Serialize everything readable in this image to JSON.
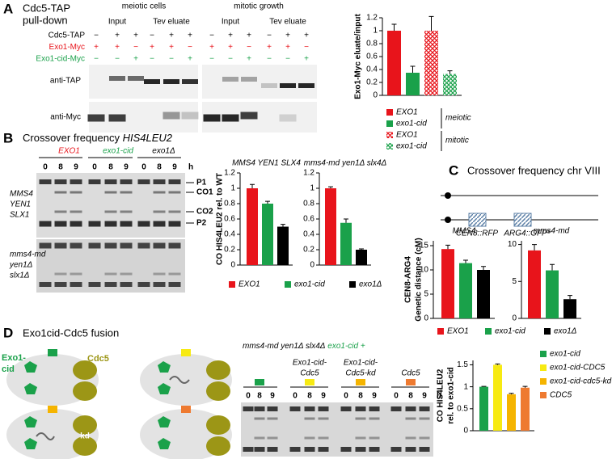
{
  "A": {
    "letter": "A",
    "title": [
      "Cdc5-TAP",
      "pull-down"
    ],
    "conditions": [
      "meiotic cells",
      "mitotic growth"
    ],
    "fractions": [
      "Input",
      "Tev eluate",
      "Input",
      "Tev eluate"
    ],
    "rows": [
      {
        "label": "Cdc5-TAP",
        "color": "#000000",
        "signs": [
          "−",
          "+",
          "+",
          "−",
          "+",
          "+",
          "−",
          "+",
          "+",
          "−",
          "+",
          "+"
        ]
      },
      {
        "label": "Exo1-Myc",
        "color": "#e8141b",
        "signs": [
          "+",
          "+",
          "−",
          "+",
          "+",
          "−",
          "+",
          "+",
          "−",
          "+",
          "+",
          "−"
        ]
      },
      {
        "label": "Exo1-cid-Myc",
        "color": "#1aa14a",
        "signs": [
          "−",
          "−",
          "+",
          "−",
          "−",
          "+",
          "−",
          "−",
          "+",
          "−",
          "−",
          "+"
        ]
      }
    ],
    "blots": [
      "anti-TAP",
      "anti-Myc"
    ],
    "legend_groups": [
      "meiotic",
      "mitotic"
    ]
  },
  "B": {
    "letter": "B",
    "title": "Crossover frequency",
    "title_locus": "HIS4LEU2",
    "genotypes": [
      {
        "name": "EXO1",
        "color": "#e8141b"
      },
      {
        "name": "exo1-cid",
        "color": "#1aa14a"
      },
      {
        "name": "exo1Δ",
        "color": "#000000"
      }
    ],
    "lanes": [
      "0",
      "8",
      "9",
      "0",
      "8",
      "9",
      "0",
      "8",
      "9"
    ],
    "lane_unit": "h",
    "bands": [
      "P1",
      "CO1",
      "CO2",
      "P2"
    ],
    "strains": [
      [
        "MMS4",
        "YEN1",
        "SLX1"
      ],
      [
        "mms4-md",
        "yen1Δ",
        "slx1Δ"
      ]
    ],
    "legend": [
      {
        "name": "EXO1",
        "color": "#e8141b"
      },
      {
        "name": "exo1-cid",
        "color": "#1aa14a"
      },
      {
        "name": "exo1Δ",
        "color": "#000000"
      }
    ]
  },
  "C": {
    "letter": "C",
    "title": "Crossover frequency chr VIII",
    "markers": [
      "CEN8::RFP",
      "ARG4::GFP*"
    ],
    "legend": [
      {
        "name": "EXO1",
        "color": "#e8141b"
      },
      {
        "name": "exo1-cid",
        "color": "#1aa14a"
      },
      {
        "name": "exo1Δ",
        "color": "#000000"
      }
    ]
  },
  "D": {
    "letter": "D",
    "title": "Exo1cid-Cdc5 fusion",
    "cell_labels": [
      "Exo1-",
      "cid",
      "Cdc5",
      "kd"
    ],
    "gel_title": "mms4-md yen1Δ slx4Δ",
    "gel_title_suffix": "exo1-cid +",
    "constructs": [
      {
        "label": [],
        "color": "#1aa14a"
      },
      {
        "label": [
          "Exo1-cid-",
          "Cdc5"
        ],
        "color": "#f7ea12"
      },
      {
        "label": [
          "Exo1-cid-",
          "Cdc5-kd"
        ],
        "color": "#f5b400"
      },
      {
        "label": [
          "Cdc5"
        ],
        "color": "#ee7a30"
      }
    ],
    "lanes": [
      "0",
      "8",
      "9",
      "0",
      "8",
      "9",
      "0",
      "8",
      "9",
      "0",
      "8",
      "9"
    ],
    "lane_unit": "h"
  },
  "charts": [
    {
      "type": "bar",
      "ylabel": [
        "Exo1-Myc eluate/input"
      ],
      "ylim": [
        0,
        1.2
      ],
      "yticks": [
        0,
        0.2,
        0.4,
        0.6,
        0.8,
        1,
        1.2
      ],
      "categories": [
        "EXO1",
        "exo1-cid",
        "EXO1",
        "exo1-cid"
      ],
      "values": [
        1,
        0.35,
        1,
        0.33
      ],
      "errors": [
        0.1,
        0.1,
        0.22,
        0.05
      ],
      "colors": [
        "#e8141b",
        "#1aa14a",
        "#e8141b",
        "#1aa14a"
      ],
      "hatched": [
        false,
        false,
        true,
        true
      ]
    },
    {
      "type": "bar",
      "title": "MMS4 YEN1 SLX4",
      "ylabel": [
        "CO HIS4LEU2 rel. to WT"
      ],
      "ylim": [
        0,
        1.2
      ],
      "yticks": [
        0,
        0.2,
        0.4,
        0.6,
        0.8,
        1,
        1.2
      ],
      "values": [
        1,
        0.8,
        0.5
      ],
      "errors": [
        0.05,
        0.03,
        0.03
      ],
      "colors": [
        "#e8141b",
        "#1aa14a",
        "#000000"
      ]
    },
    {
      "type": "bar",
      "title": "mms4-md yen1Δ slx4Δ",
      "ylim": [
        0,
        1.2
      ],
      "yticks": [
        0,
        0.2,
        0.4,
        0.6,
        0.8,
        1,
        1.2
      ],
      "values": [
        1,
        0.55,
        0.2
      ],
      "errors": [
        0.02,
        0.05,
        0.01
      ],
      "colors": [
        "#e8141b",
        "#1aa14a",
        "#000000"
      ]
    },
    {
      "type": "bar",
      "title": "MMS4",
      "ylabel": [
        "CEN8-ARG4",
        "Genetic distance (cM)"
      ],
      "ylim": [
        0,
        16
      ],
      "yticks": [
        0,
        5,
        10,
        15
      ],
      "values": [
        14.3,
        11.4,
        10
      ],
      "errors": [
        0.8,
        0.6,
        0.7
      ],
      "colors": [
        "#e8141b",
        "#1aa14a",
        "#000000"
      ]
    },
    {
      "type": "bar",
      "title": "mms4-md",
      "ylim": [
        0,
        10.5
      ],
      "yticks": [
        0,
        5,
        10
      ],
      "values": [
        9.2,
        6.5,
        2.6
      ],
      "errors": [
        0.8,
        0.8,
        0.5
      ],
      "colors": [
        "#e8141b",
        "#1aa14a",
        "#000000"
      ]
    },
    {
      "type": "bar",
      "ylabel": [
        "CO HIS4LEU2",
        "rel. to exo1-cid"
      ],
      "ylim": [
        0,
        1.6
      ],
      "yticks": [
        0,
        0.5,
        1,
        1.5
      ],
      "categories": [
        "exo1-cid",
        "exo1-cid-CDC5",
        "exo1-cid-cdc5-kd",
        "CDC5"
      ],
      "values": [
        1,
        1.5,
        0.83,
        0.98
      ],
      "errors": [
        0.01,
        0.02,
        0.02,
        0.03
      ],
      "colors": [
        "#1aa14a",
        "#f7ea12",
        "#f5b400",
        "#ee7a30"
      ]
    }
  ]
}
